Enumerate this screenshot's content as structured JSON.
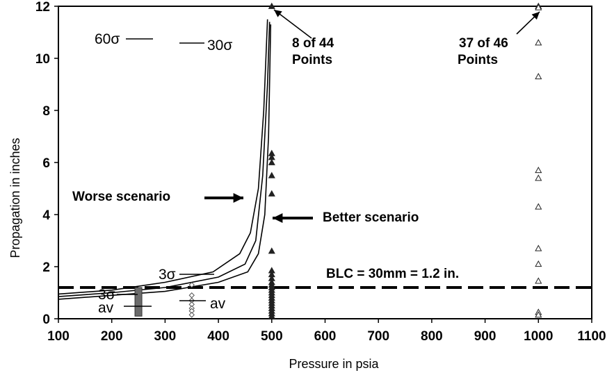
{
  "chart_data": {
    "type": "line",
    "title": "",
    "xlabel": "Pressure in psia",
    "ylabel": "Propagation in inches",
    "xlim": [
      100,
      1100
    ],
    "ylim": [
      0,
      12
    ],
    "x_ticks": [
      100,
      200,
      300,
      400,
      500,
      600,
      700,
      800,
      900,
      1000,
      1100
    ],
    "y_ticks": [
      0,
      2,
      4,
      6,
      8,
      10,
      12
    ],
    "grid": false,
    "legend": "none",
    "curves": [
      {
        "points": [
          [
            100,
            0.95
          ],
          [
            200,
            1.1
          ],
          [
            300,
            1.4
          ],
          [
            390,
            1.8
          ],
          [
            440,
            2.5
          ],
          [
            460,
            3.3
          ],
          [
            475,
            5.0
          ],
          [
            485,
            8.0
          ],
          [
            492,
            11.5
          ]
        ]
      },
      {
        "points": [
          [
            100,
            0.85
          ],
          [
            200,
            1.0
          ],
          [
            300,
            1.2
          ],
          [
            400,
            1.6
          ],
          [
            450,
            2.1
          ],
          [
            470,
            3.0
          ],
          [
            483,
            5.5
          ],
          [
            492,
            9.0
          ],
          [
            496,
            11.4
          ]
        ]
      },
      {
        "points": [
          [
            100,
            0.75
          ],
          [
            200,
            0.9
          ],
          [
            300,
            1.05
          ],
          [
            400,
            1.4
          ],
          [
            455,
            1.8
          ],
          [
            475,
            2.5
          ],
          [
            487,
            4.0
          ],
          [
            494,
            7.0
          ],
          [
            498,
            11.3
          ]
        ]
      }
    ],
    "reference_line": {
      "y": 1.2,
      "label": "BLC = 30mm = 1.2 in."
    },
    "points_500": [
      12.0,
      6.35,
      6.2,
      6.0,
      5.5,
      4.8,
      2.6,
      1.85,
      1.7,
      1.55,
      1.4,
      1.3,
      1.2,
      1.1,
      1.0,
      0.9,
      0.8,
      0.7,
      0.6,
      0.5,
      0.4,
      0.3,
      0.2,
      0.1
    ],
    "points_1000": [
      12.0,
      11.95,
      10.6,
      9.3,
      5.7,
      5.4,
      4.3,
      2.7,
      2.1,
      1.45,
      0.25,
      0.15
    ],
    "diamonds_350": [
      1.3,
      0.9,
      0.7,
      0.55,
      0.4,
      0.3,
      0.15
    ],
    "bar_250": {
      "x": 250,
      "y0": 0.1,
      "y1": 1.2
    },
    "annotations": {
      "pts_500_label": [
        "8 of 44",
        "Points"
      ],
      "pts_1000_label": [
        "37 of 46",
        "Points"
      ],
      "worse": "Worse scenario",
      "better": "Better scenario",
      "sigma60": "60σ",
      "sigma30": "30σ",
      "sigma3a": "3σ",
      "sigma3b": "3σ",
      "av1": "av",
      "av2": "av"
    }
  }
}
